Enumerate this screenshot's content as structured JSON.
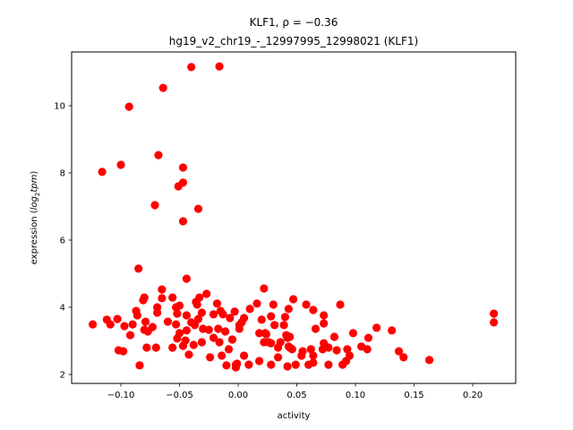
{
  "chart_data": {
    "type": "scatter",
    "title": [
      "KLF1, ρ = −0.36",
      "hg19_v2_chr19_-_12997995_12998021 (KLF1)"
    ],
    "xlabel": "activity",
    "ylabel_parts": [
      "expression (",
      "log",
      "2",
      "tpm",
      ")"
    ],
    "xlim": [
      -0.142,
      0.2366
    ],
    "ylim": [
      1.733,
      11.6
    ],
    "xticks": [
      -0.1,
      -0.05,
      0.0,
      0.05,
      0.1,
      0.15,
      0.2
    ],
    "xtick_labels": [
      "−0.10",
      "−0.05",
      "0.00",
      "0.05",
      "0.10",
      "0.15",
      "0.20"
    ],
    "yticks": [
      2,
      4,
      6,
      8,
      10
    ],
    "ytick_labels": [
      "2",
      "4",
      "6",
      "8",
      "10"
    ],
    "grid": false,
    "marker_color": "#ff0000",
    "points": [
      [
        -0.116,
        8.03
      ],
      [
        -0.1,
        8.24
      ],
      [
        -0.093,
        9.97
      ],
      [
        -0.064,
        10.53
      ],
      [
        -0.04,
        11.15
      ],
      [
        -0.016,
        11.17
      ],
      [
        -0.068,
        8.53
      ],
      [
        -0.047,
        8.16
      ],
      [
        -0.047,
        7.71
      ],
      [
        -0.051,
        7.6
      ],
      [
        -0.071,
        7.04
      ],
      [
        -0.034,
        6.93
      ],
      [
        -0.047,
        6.56
      ],
      [
        -0.085,
        5.15
      ],
      [
        -0.044,
        4.85
      ],
      [
        -0.124,
        3.49
      ],
      [
        -0.112,
        3.63
      ],
      [
        -0.109,
        3.49
      ],
      [
        -0.103,
        3.65
      ],
      [
        -0.097,
        3.44
      ],
      [
        -0.09,
        3.49
      ],
      [
        -0.092,
        3.17
      ],
      [
        -0.102,
        2.72
      ],
      [
        -0.098,
        2.69
      ],
      [
        -0.084,
        2.27
      ],
      [
        -0.087,
        3.89
      ],
      [
        -0.086,
        3.76
      ],
      [
        -0.08,
        4.29
      ],
      [
        -0.081,
        4.21
      ],
      [
        -0.079,
        3.57
      ],
      [
        -0.08,
        3.33
      ],
      [
        -0.077,
        3.28
      ],
      [
        -0.073,
        3.41
      ],
      [
        -0.078,
        2.8
      ],
      [
        -0.07,
        2.8
      ],
      [
        -0.069,
        4.0
      ],
      [
        -0.069,
        3.84
      ],
      [
        -0.065,
        4.53
      ],
      [
        -0.065,
        4.27
      ],
      [
        -0.056,
        4.29
      ],
      [
        -0.06,
        3.57
      ],
      [
        -0.056,
        2.8
      ],
      [
        -0.053,
        4.0
      ],
      [
        -0.052,
        3.81
      ],
      [
        -0.05,
        4.05
      ],
      [
        -0.053,
        3.49
      ],
      [
        -0.05,
        3.23
      ],
      [
        -0.052,
        3.07
      ],
      [
        -0.047,
        2.85
      ],
      [
        -0.044,
        3.76
      ],
      [
        -0.044,
        3.31
      ],
      [
        -0.045,
        3.01
      ],
      [
        -0.042,
        2.59
      ],
      [
        -0.04,
        3.55
      ],
      [
        -0.038,
        2.88
      ],
      [
        -0.036,
        4.16
      ],
      [
        -0.035,
        4.08
      ],
      [
        -0.033,
        4.29
      ],
      [
        -0.027,
        4.4
      ],
      [
        -0.037,
        3.47
      ],
      [
        -0.034,
        3.65
      ],
      [
        -0.031,
        3.84
      ],
      [
        -0.03,
        3.36
      ],
      [
        -0.031,
        2.96
      ],
      [
        -0.025,
        3.33
      ],
      [
        -0.024,
        2.51
      ],
      [
        -0.021,
        3.79
      ],
      [
        -0.021,
        3.09
      ],
      [
        -0.018,
        4.11
      ],
      [
        -0.015,
        3.89
      ],
      [
        -0.017,
        3.36
      ],
      [
        -0.016,
        2.96
      ],
      [
        -0.013,
        3.79
      ],
      [
        -0.011,
        3.28
      ],
      [
        -0.014,
        2.56
      ],
      [
        -0.01,
        2.27
      ],
      [
        -0.008,
        2.75
      ],
      [
        -0.007,
        3.68
      ],
      [
        -0.005,
        3.04
      ],
      [
        -0.003,
        3.87
      ],
      [
        -0.002,
        2.29
      ],
      [
        0.001,
        3.47
      ],
      [
        0.005,
        3.68
      ],
      [
        0.005,
        2.56
      ],
      [
        0.009,
        2.29
      ],
      [
        0.01,
        3.95
      ],
      [
        0.016,
        4.11
      ],
      [
        0.018,
        2.4
      ],
      [
        0.02,
        3.63
      ],
      [
        0.022,
        4.56
      ],
      [
        0.023,
        3.23
      ],
      [
        0.026,
        2.96
      ],
      [
        0.028,
        3.73
      ],
      [
        0.03,
        4.08
      ],
      [
        0.031,
        3.47
      ],
      [
        0.034,
        2.8
      ],
      [
        0.036,
        2.96
      ],
      [
        0.039,
        3.47
      ],
      [
        0.04,
        3.71
      ],
      [
        0.043,
        3.95
      ],
      [
        0.042,
        3.09
      ],
      [
        0.044,
        2.8
      ],
      [
        0.042,
        2.24
      ],
      [
        0.047,
        4.24
      ],
      [
        0.058,
        4.08
      ],
      [
        0.064,
        3.92
      ],
      [
        0.087,
        4.08
      ],
      [
        0.073,
        3.76
      ],
      [
        0.073,
        3.52
      ],
      [
        0.066,
        3.36
      ],
      [
        0.003,
        3.55
      ],
      [
        0.001,
        3.36
      ],
      [
        0.018,
        3.23
      ],
      [
        0.024,
        3.2
      ],
      [
        0.041,
        3.17
      ],
      [
        0.044,
        3.12
      ],
      [
        -0.005,
        3.04
      ],
      [
        0.022,
        2.96
      ],
      [
        0.028,
        2.93
      ],
      [
        0.043,
        2.83
      ],
      [
        0.046,
        2.75
      ],
      [
        0.073,
        2.93
      ],
      [
        0.082,
        3.12
      ],
      [
        0.098,
        3.23
      ],
      [
        0.111,
        3.09
      ],
      [
        0.118,
        3.39
      ],
      [
        0.131,
        3.31
      ],
      [
        0.105,
        2.83
      ],
      [
        0.11,
        2.75
      ],
      [
        0.093,
        2.75
      ],
      [
        0.077,
        2.8
      ],
      [
        0.084,
        2.72
      ],
      [
        0.072,
        2.75
      ],
      [
        0.055,
        2.69
      ],
      [
        0.062,
        2.75
      ],
      [
        0.064,
        2.56
      ],
      [
        0.054,
        2.56
      ],
      [
        0.095,
        2.56
      ],
      [
        0.137,
        2.69
      ],
      [
        0.141,
        2.51
      ],
      [
        0.163,
        2.43
      ],
      [
        0.034,
        2.51
      ],
      [
        0.049,
        2.29
      ],
      [
        0.06,
        2.29
      ],
      [
        0.064,
        2.35
      ],
      [
        0.077,
        2.29
      ],
      [
        0.089,
        2.29
      ],
      [
        0.092,
        2.4
      ],
      [
        -0.001,
        2.32
      ],
      [
        -0.002,
        2.21
      ],
      [
        0.028,
        2.29
      ],
      [
        0.218,
        3.81
      ],
      [
        0.218,
        3.55
      ]
    ]
  }
}
